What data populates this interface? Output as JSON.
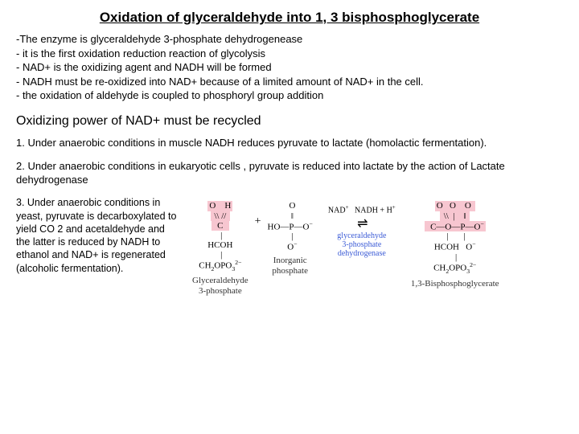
{
  "title": "Oxidation of glyceraldehyde into 1, 3 bisphosphoglycerate",
  "bullets": [
    "-The enzyme is glyceraldehyde 3-phosphate dehydrogenease",
    "- it is the first oxidation reduction reaction of glycolysis",
    "- NAD+ is the oxidizing agent and NADH will be formed",
    "- NADH must be re-oxidized into NAD+ because of a limited amount of NAD+ in the cell.",
    "- the oxidation of aldehyde is coupled to phosphoryl group addition"
  ],
  "subhead": "Oxidizing power of NAD+ must be recycled",
  "para1": "1. Under anaerobic conditions in muscle NADH reduces pyruvate to lactate (homolactic fermentation).",
  "para2": "2. Under anaerobic conditions in eukaryotic cells , pyruvate is reduced into lactate by the action of Lactate dehydrogenase",
  "para3": "3. Under anaerobic conditions in yeast, pyruvate is decarboxylated to yield CO 2 and acetaldehyde and the latter is reduced by NADH to ethanol and NAD+ is regenerated (alcoholic fermentation).",
  "reaction": {
    "reactant1_label": "Glyceraldehyde\n3-phosphate",
    "reactant2_label": "Inorganic\nphosphate",
    "product_label": "1,3-Bisphosphoglycerate",
    "cofactor_in": "NAD",
    "cofactor_out": "NADH + H",
    "enzyme": "glyceraldehyde\n3-phosphate\ndehydrogenase",
    "highlight_color": "#f7c6d0",
    "enzyme_color": "#3b5bd6"
  }
}
